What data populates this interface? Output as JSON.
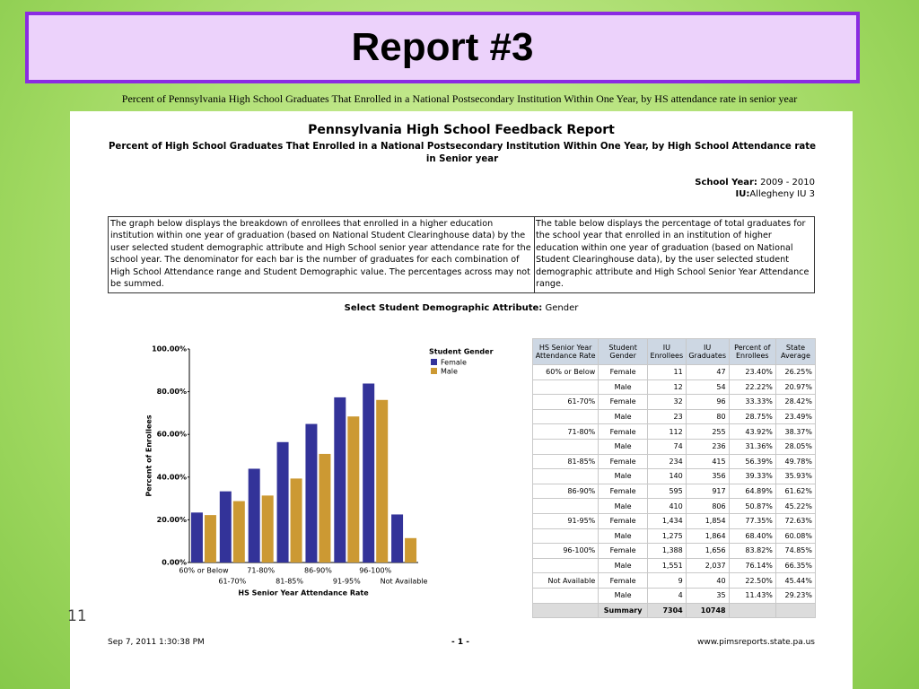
{
  "slide": {
    "title": "Report #3",
    "caption": "Percent of Pennsylvania High School Graduates That Enrolled in a National Postsecondary Institution Within One Year, by HS attendance rate in senior year",
    "number": "11"
  },
  "report": {
    "title": "Pennsylvania High School Feedback Report",
    "subtitle": "Percent of High School Graduates That Enrolled in a National Postsecondary Institution  Within One Year, by High School Attendance rate in Senior year",
    "school_year_label": "School Year:",
    "school_year": "2009 - 2010",
    "iu_label": "IU:",
    "iu": "Allegheny IU 3",
    "left_note": "The graph below displays the breakdown of enrollees that enrolled in a higher education institution within one year of graduation (based on National Student Clearinghouse data) by the user selected student demographic attribute and High School senior year attendance rate for the school year. The denominator for each bar is the number of graduates for each combination of High School Attendance range and Student Demographic value. The percentages across may not be summed.",
    "right_note": "The table below displays the percentage of total graduates for the school year that enrolled in an institution of higher education within one year of graduation (based on National Student Clearinghouse data), by the user selected student demographic attribute and High School Senior Year Attendance range.",
    "select_label": "Select Student Demographic Attribute:",
    "select_value": "Gender"
  },
  "chart_data": {
    "type": "bar",
    "xlabel": "HS Senior Year Attendance Rate",
    "ylabel": "Percent of Enrollees",
    "legend_title": "Student Gender",
    "categories": [
      "60% or Below",
      "61-70%",
      "71-80%",
      "81-85%",
      "86-90%",
      "91-95%",
      "96-100%",
      "Not Available"
    ],
    "series": [
      {
        "name": "Female",
        "color": "#333399",
        "values": [
          23.4,
          33.33,
          43.92,
          56.39,
          64.89,
          77.35,
          83.82,
          22.5
        ]
      },
      {
        "name": "Male",
        "color": "#cc9933",
        "values": [
          22.22,
          28.75,
          31.36,
          39.33,
          50.87,
          68.4,
          76.14,
          11.43
        ]
      }
    ],
    "ylim": [
      0,
      100
    ],
    "yticks": [
      {
        "value": 0,
        "label": "0.00%"
      },
      {
        "value": 20,
        "label": "20.00%"
      },
      {
        "value": 40,
        "label": "40.00%"
      },
      {
        "value": 60,
        "label": "60.00%"
      },
      {
        "value": 80,
        "label": "80.00%"
      },
      {
        "value": 100,
        "label": "100.00%"
      }
    ]
  },
  "table": {
    "header": [
      "HS Senior Year Attendance Rate",
      "Student Gender",
      "IU Enrollees",
      "IU Graduates",
      "Percent of Enrollees",
      "State Average"
    ],
    "rows": [
      [
        "60% or Below",
        "Female",
        "11",
        "47",
        "23.40%",
        "26.25%"
      ],
      [
        null,
        "Male",
        "12",
        "54",
        "22.22%",
        "20.97%"
      ],
      [
        "61-70%",
        "Female",
        "32",
        "96",
        "33.33%",
        "28.42%"
      ],
      [
        null,
        "Male",
        "23",
        "80",
        "28.75%",
        "23.49%"
      ],
      [
        "71-80%",
        "Female",
        "112",
        "255",
        "43.92%",
        "38.37%"
      ],
      [
        null,
        "Male",
        "74",
        "236",
        "31.36%",
        "28.05%"
      ],
      [
        "81-85%",
        "Female",
        "234",
        "415",
        "56.39%",
        "49.78%"
      ],
      [
        null,
        "Male",
        "140",
        "356",
        "39.33%",
        "35.93%"
      ],
      [
        "86-90%",
        "Female",
        "595",
        "917",
        "64.89%",
        "61.62%"
      ],
      [
        null,
        "Male",
        "410",
        "806",
        "50.87%",
        "45.22%"
      ],
      [
        "91-95%",
        "Female",
        "1,434",
        "1,854",
        "77.35%",
        "72.63%"
      ],
      [
        null,
        "Male",
        "1,275",
        "1,864",
        "68.40%",
        "60.08%"
      ],
      [
        "96-100%",
        "Female",
        "1,388",
        "1,656",
        "83.82%",
        "74.85%"
      ],
      [
        null,
        "Male",
        "1,551",
        "2,037",
        "76.14%",
        "66.35%"
      ],
      [
        "Not Available",
        "Female",
        "9",
        "40",
        "22.50%",
        "45.44%"
      ],
      [
        null,
        "Male",
        "4",
        "35",
        "11.43%",
        "29.23%"
      ]
    ],
    "summary": [
      null,
      "Summary",
      "7304",
      "10748",
      null,
      null
    ]
  },
  "footer": {
    "date": "Sep 7, 2011   1:30:38 PM",
    "page": "- 1 -",
    "url": "www.pimsreports.state.pa.us"
  }
}
